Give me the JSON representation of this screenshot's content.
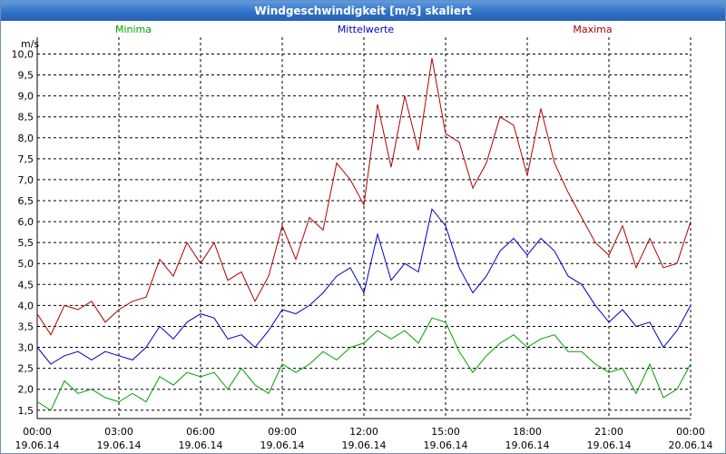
{
  "window": {
    "title": "Windgeschwindigkeit [m/s] skaliert"
  },
  "chart_data": {
    "type": "line",
    "title": "Windgeschwindigkeit [m/s] skaliert",
    "ylabel": "m/s",
    "ylim": [
      1.3,
      10.4
    ],
    "xlim_hours": [
      0,
      24
    ],
    "grid": true,
    "legend_placement": "top",
    "y_ticks": [
      "1,5",
      "2,0",
      "2,5",
      "3,0",
      "3,5",
      "4,0",
      "4,5",
      "5,0",
      "5,5",
      "6,0",
      "6,5",
      "7,0",
      "7,5",
      "8,0",
      "8,5",
      "9,0",
      "9,5",
      "10,0"
    ],
    "x_ticks": [
      {
        "time": "00:00",
        "date": "19.06.14"
      },
      {
        "time": "03:00",
        "date": "19.06.14"
      },
      {
        "time": "06:00",
        "date": "19.06.14"
      },
      {
        "time": "09:00",
        "date": "19.06.14"
      },
      {
        "time": "12:00",
        "date": "19.06.14"
      },
      {
        "time": "15:00",
        "date": "19.06.14"
      },
      {
        "time": "18:00",
        "date": "19.06.14"
      },
      {
        "time": "21:00",
        "date": "19.06.14"
      },
      {
        "time": "00:00",
        "date": "20.06.14"
      }
    ],
    "series": [
      {
        "name": "Minima",
        "color": "#00a000",
        "hours": [
          0,
          0.5,
          1,
          1.5,
          2,
          2.5,
          3,
          3.5,
          4,
          4.5,
          5,
          5.5,
          6,
          6.5,
          7,
          7.5,
          8,
          8.5,
          9,
          9.5,
          10,
          10.5,
          11,
          11.5,
          12,
          12.5,
          13,
          13.5,
          14,
          14.5,
          15,
          15.5,
          16,
          16.5,
          17,
          17.5,
          18,
          18.5,
          19,
          19.5,
          20,
          20.5,
          21,
          21.5,
          22,
          22.5,
          23,
          23.5,
          24
        ],
        "values": [
          1.7,
          1.5,
          2.2,
          1.9,
          2.0,
          1.8,
          1.7,
          1.9,
          1.7,
          2.3,
          2.1,
          2.4,
          2.3,
          2.4,
          2.0,
          2.5,
          2.1,
          1.9,
          2.6,
          2.4,
          2.6,
          2.9,
          2.7,
          3.0,
          3.1,
          3.4,
          3.2,
          3.4,
          3.1,
          3.7,
          3.6,
          2.9,
          2.4,
          2.8,
          3.1,
          3.3,
          3.0,
          3.2,
          3.3,
          2.9,
          2.9,
          2.6,
          2.4,
          2.5,
          1.9,
          2.6,
          1.8,
          2.0,
          2.6
        ]
      },
      {
        "name": "Mittelwerte",
        "color": "#0000c0",
        "hours": [
          0,
          0.5,
          1,
          1.5,
          2,
          2.5,
          3,
          3.5,
          4,
          4.5,
          5,
          5.5,
          6,
          6.5,
          7,
          7.5,
          8,
          8.5,
          9,
          9.5,
          10,
          10.5,
          11,
          11.5,
          12,
          12.5,
          13,
          13.5,
          14,
          14.5,
          15,
          15.5,
          16,
          16.5,
          17,
          17.5,
          18,
          18.5,
          19,
          19.5,
          20,
          20.5,
          21,
          21.5,
          22,
          22.5,
          23,
          23.5,
          24
        ],
        "values": [
          3.0,
          2.6,
          2.8,
          2.9,
          2.7,
          2.9,
          2.8,
          2.7,
          3.0,
          3.5,
          3.2,
          3.6,
          3.8,
          3.7,
          3.2,
          3.3,
          3.0,
          3.4,
          3.9,
          3.8,
          4.0,
          4.3,
          4.7,
          4.9,
          4.3,
          5.7,
          4.6,
          5.0,
          4.8,
          6.3,
          5.9,
          4.9,
          4.3,
          4.7,
          5.3,
          5.6,
          5.2,
          5.6,
          5.3,
          4.7,
          4.5,
          4.0,
          3.6,
          3.9,
          3.5,
          3.6,
          3.0,
          3.4,
          4.0
        ]
      },
      {
        "name": "Maxima",
        "color": "#b00000",
        "hours": [
          0,
          0.5,
          1,
          1.5,
          2,
          2.5,
          3,
          3.5,
          4,
          4.5,
          5,
          5.5,
          6,
          6.5,
          7,
          7.5,
          8,
          8.5,
          9,
          9.5,
          10,
          10.5,
          11,
          11.5,
          12,
          12.5,
          13,
          13.5,
          14,
          14.5,
          15,
          15.5,
          16,
          16.5,
          17,
          17.5,
          18,
          18.5,
          19,
          19.5,
          20,
          20.5,
          21,
          21.5,
          22,
          22.5,
          23,
          23.5,
          24
        ],
        "values": [
          3.8,
          3.3,
          4.0,
          3.9,
          4.1,
          3.6,
          3.9,
          4.1,
          4.2,
          5.1,
          4.7,
          5.5,
          5.0,
          5.5,
          4.6,
          4.8,
          4.1,
          4.7,
          5.9,
          5.1,
          6.1,
          5.8,
          7.4,
          7.0,
          6.4,
          8.8,
          7.3,
          9.0,
          7.7,
          9.9,
          8.1,
          7.9,
          6.8,
          7.4,
          8.5,
          8.3,
          7.1,
          8.7,
          7.4,
          6.7,
          6.1,
          5.5,
          5.2,
          5.9,
          4.9,
          5.6,
          4.9,
          5.0,
          6.0
        ]
      }
    ]
  }
}
